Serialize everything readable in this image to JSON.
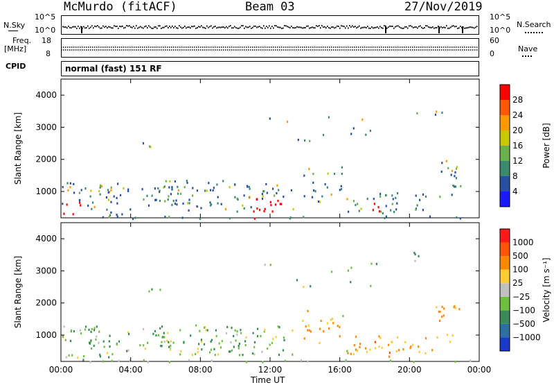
{
  "header": {
    "station": "McMurdo (fitACF)",
    "beam": "Beam 03",
    "date": "27/Nov/2019"
  },
  "top_panels": {
    "nsky_label": "N.Sky",
    "nsearch_label": "N.Search",
    "freq_label": "Freq.",
    "freq_unit": "[MHz]",
    "nave_label": "Nave",
    "cpid_label": "CPID",
    "cpid_text": "normal (fast) 151 RF",
    "noise_ticks": [
      "10^5",
      "10^0"
    ],
    "freq_ticks": [
      "18",
      "8"
    ],
    "nave_ticks": [
      "60",
      "0"
    ]
  },
  "chart_data": [
    {
      "type": "heatmap",
      "name": "power-panel",
      "ylabel": "Slant Range [km]",
      "xlabel": "Time UT",
      "x_ticks": [
        "00:00",
        "04:00",
        "08:00",
        "12:00",
        "16:00",
        "20:00",
        "00:00"
      ],
      "x_range_hours": [
        0,
        24
      ],
      "y_ticks": [
        "1000",
        "2000",
        "3000",
        "4000"
      ],
      "ylim": [
        180,
        4500
      ],
      "colorbar": {
        "label": "Power [dB]",
        "ticks": [
          "4",
          "8",
          "12",
          "16",
          "20",
          "24",
          "28"
        ],
        "colors": [
          "#1a1aff",
          "#2850a0",
          "#3c8a6e",
          "#6ab04c",
          "#c8c800",
          "#ff9900",
          "#ff5a00",
          "#ff0000"
        ]
      }
    },
    {
      "type": "heatmap",
      "name": "velocity-panel",
      "ylabel": "Slant Range [km]",
      "xlabel": "Time UT",
      "x_ticks": [
        "00:00",
        "04:00",
        "08:00",
        "12:00",
        "16:00",
        "20:00",
        "00:00"
      ],
      "x_range_hours": [
        0,
        24
      ],
      "y_ticks": [
        "1000",
        "2000",
        "3000",
        "4000"
      ],
      "ylim": [
        180,
        4500
      ],
      "colorbar": {
        "label": "Velocity [m s⁻¹]",
        "ticks": [
          "1000",
          "500",
          "100",
          "25",
          "−25",
          "−100",
          "−500",
          "−1000"
        ],
        "colors": [
          "#1a3acc",
          "#2d6fa0",
          "#3a8a5a",
          "#6ec13c",
          "#c0c0c0",
          "#ffcc33",
          "#ff8800",
          "#ff5500",
          "#ff1a1a"
        ]
      }
    }
  ],
  "time_axis_label": "Time UT"
}
